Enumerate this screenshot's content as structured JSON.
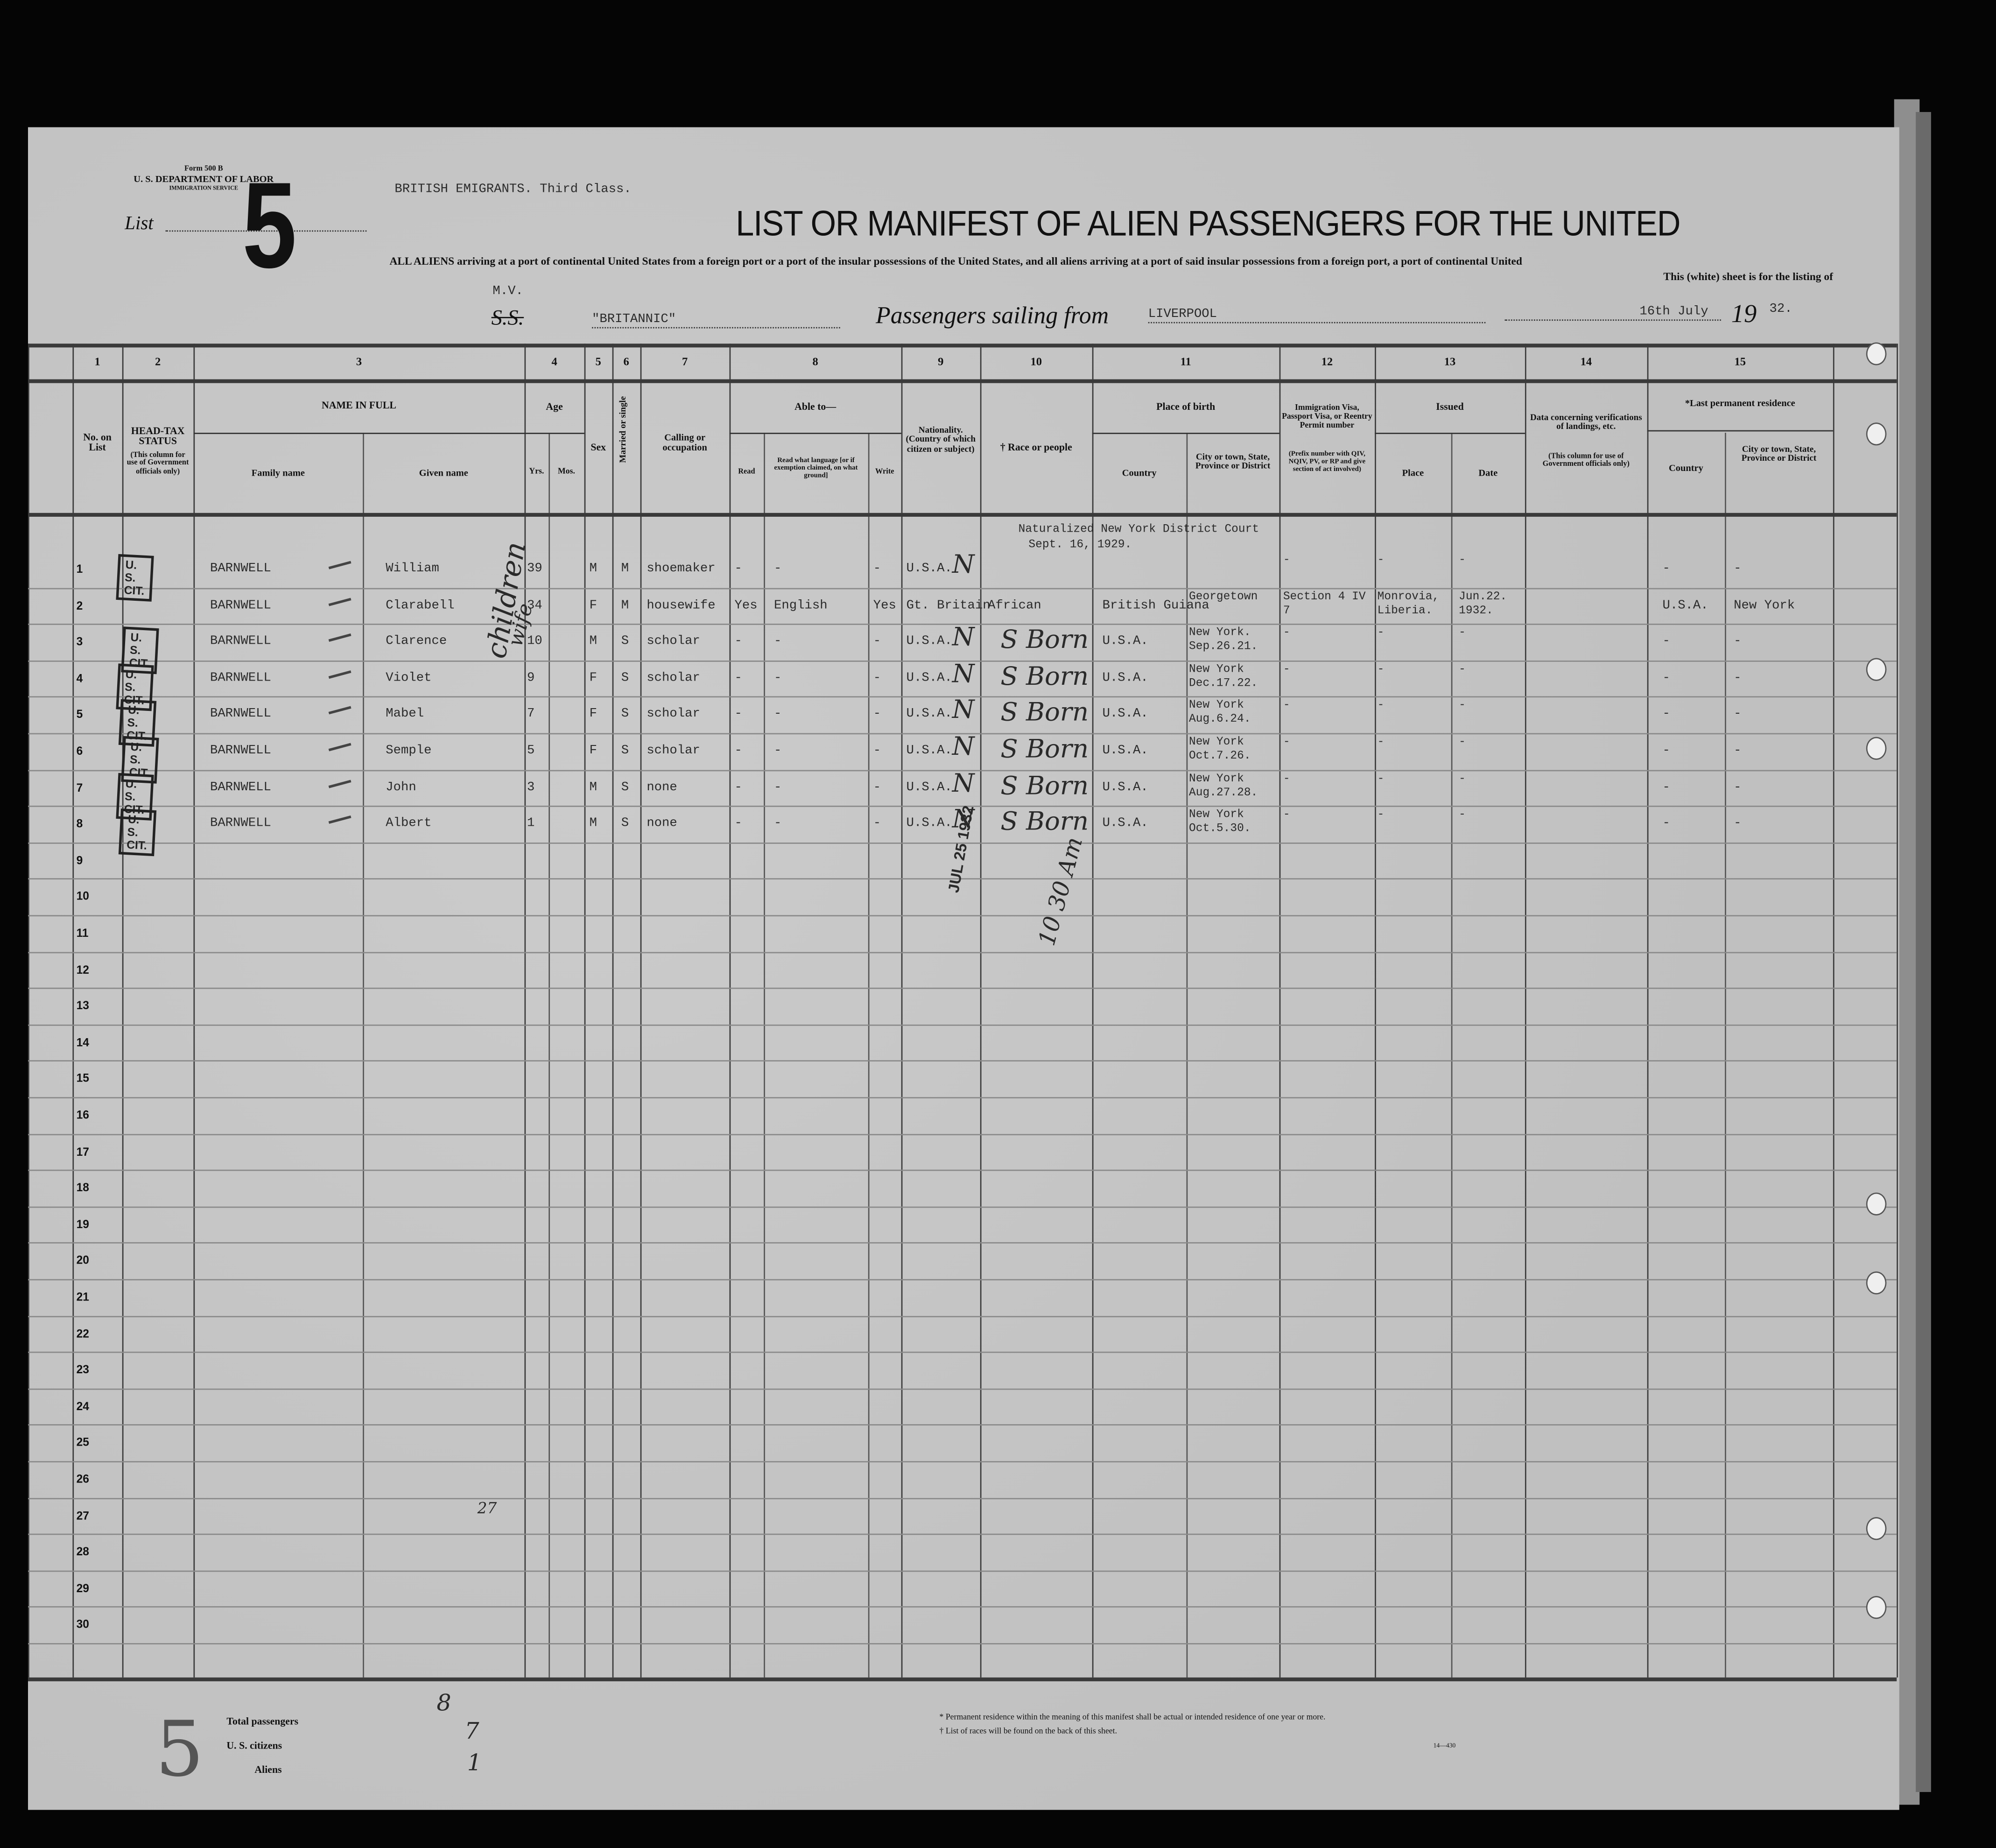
{
  "form": {
    "form_no": "Form 500 B",
    "department": "U. S. DEPARTMENT OF LABOR",
    "service": "IMMIGRATION SERVICE",
    "list_label": "List",
    "list_number": "5",
    "typed_heading": "BRITISH EMIGRANTS.   Third Class.",
    "title": "LIST OR MANIFEST OF ALIEN PASSENGERS FOR THE UNITED",
    "subtitle": "ALL ALIENS arriving at a port of continental United States from a foreign port or a port of the insular possessions of the United States, and all aliens arriving at a port of said insular possessions from a foreign port, a port of continental United",
    "subtitle2": "This (white) sheet is for the listing of",
    "vessel_prefix_typed": "M.V.",
    "vessel_prefix_printed": "S.S.",
    "vessel_name": "\"BRITANNIC\"",
    "sailing_label": "Passengers sailing from",
    "port": "LIVERPOOL",
    "date": "16th July",
    "year_prefix": "19",
    "year_suffix": "32."
  },
  "columns": {
    "numbers": [
      "1",
      "2",
      "3",
      "4",
      "5",
      "6",
      "7",
      "8",
      "9",
      "10",
      "11",
      "12",
      "13",
      "14",
      "15"
    ],
    "no_on_list": "No. on List",
    "head_tax": "HEAD-TAX STATUS",
    "head_tax_note": "(This column for use of Government officials only)",
    "name_in_full": "NAME IN FULL",
    "family_name": "Family name",
    "given_name": "Given name",
    "age": "Age",
    "yrs": "Yrs.",
    "mos": "Mos.",
    "sex": "Sex",
    "married": "Married or single",
    "calling": "Calling or occupation",
    "able_to": "Able to—",
    "read": "Read",
    "read_lang": "Read what language [or if exemption claimed, on what ground]",
    "write": "Write",
    "nationality": "Nationality. (Country of which citizen or subject)",
    "race": "† Race or people",
    "place_of_birth": "Place of birth",
    "birth_country": "Country",
    "birth_city": "City or town, State, Province or District",
    "visa": "Immigration Visa, Passport Visa, or Reentry Permit number",
    "visa_note": "(Prefix number with QIV, NQIV, PV, or RP and give section of act involved)",
    "issued": "Issued",
    "issued_place": "Place",
    "issued_date": "Date",
    "verif": "Data concerning verifications of landings, etc.",
    "verif_note": "(This column for use of Government officials only)",
    "residence": "*Last permanent residence",
    "res_country": "Country",
    "res_city": "City or town, State, Province or District"
  },
  "row_count": 30,
  "passengers": [
    {
      "no": "1",
      "stamp": "U. S. CIT.",
      "family": "BARNWELL",
      "given": "William",
      "yrs": "39",
      "sex": "M",
      "married": "M",
      "occupation": "shoemaker",
      "read": "-",
      "language": "-",
      "write": "-",
      "nationality": "U.S.A.",
      "race": "",
      "birth_country": "",
      "birth_city": "",
      "visa": "-",
      "issued_place": "-",
      "issued_date": "-",
      "res_country": "-",
      "res_city": "-",
      "note": "Naturalized New York District Court",
      "note2": "Sept. 16, 1929."
    },
    {
      "no": "2",
      "stamp": "",
      "family": "BARNWELL",
      "given": "Clarabell",
      "yrs": "34",
      "sex": "F",
      "married": "M",
      "occupation": "housewife",
      "read": "Yes",
      "language": "English",
      "write": "Yes",
      "nationality": "Gt. Britain",
      "race": "African",
      "birth_country": "British Guiana",
      "birth_city": "Georgetown",
      "visa": "Section 4 IV 7",
      "issued_place": "Monrovia, Liberia.",
      "issued_date": "Jun.22. 1932.",
      "res_country": "U.S.A.",
      "res_city": "New York",
      "note": "",
      "note2": ""
    },
    {
      "no": "3",
      "stamp": "U. S. CIT.",
      "family": "BARNWELL",
      "given": "Clarence",
      "yrs": "10",
      "sex": "M",
      "married": "S",
      "occupation": "scholar",
      "read": "-",
      "language": "-",
      "write": "-",
      "nationality": "U.S.A.",
      "race": "",
      "birth_country": "U.S.A.",
      "birth_city": "New York. Sep.26.21.",
      "visa": "-",
      "issued_place": "-",
      "issued_date": "-",
      "res_country": "-",
      "res_city": "-",
      "note": "",
      "note2": ""
    },
    {
      "no": "4",
      "stamp": "U. S. CIT.",
      "family": "BARNWELL",
      "given": "Violet",
      "yrs": "9",
      "sex": "F",
      "married": "S",
      "occupation": "scholar",
      "read": "-",
      "language": "-",
      "write": "-",
      "nationality": "U.S.A.",
      "race": "",
      "birth_country": "U.S.A.",
      "birth_city": "New York Dec.17.22.",
      "visa": "-",
      "issued_place": "-",
      "issued_date": "-",
      "res_country": "-",
      "res_city": "-",
      "note": "",
      "note2": ""
    },
    {
      "no": "5",
      "stamp": "U. S. CIT.",
      "family": "BARNWELL",
      "given": "Mabel",
      "yrs": "7",
      "sex": "F",
      "married": "S",
      "occupation": "scholar",
      "read": "-",
      "language": "-",
      "write": "-",
      "nationality": "U.S.A.",
      "race": "",
      "birth_country": "U.S.A.",
      "birth_city": "New York Aug.6.24.",
      "visa": "-",
      "issued_place": "-",
      "issued_date": "-",
      "res_country": "-",
      "res_city": "-",
      "note": "",
      "note2": ""
    },
    {
      "no": "6",
      "stamp": "U. S. CIT.",
      "family": "BARNWELL",
      "given": "Semple",
      "yrs": "5",
      "sex": "F",
      "married": "S",
      "occupation": "scholar",
      "read": "-",
      "language": "-",
      "write": "-",
      "nationality": "U.S.A.",
      "race": "",
      "birth_country": "U.S.A.",
      "birth_city": "New York Oct.7.26.",
      "visa": "-",
      "issued_place": "-",
      "issued_date": "-",
      "res_country": "-",
      "res_city": "-",
      "note": "",
      "note2": ""
    },
    {
      "no": "7",
      "stamp": "U. S. CIT.",
      "family": "BARNWELL",
      "given": "John",
      "yrs": "3",
      "sex": "M",
      "married": "S",
      "occupation": "none",
      "read": "-",
      "language": "-",
      "write": "-",
      "nationality": "U.S.A.",
      "race": "",
      "birth_country": "U.S.A.",
      "birth_city": "New York Aug.27.28.",
      "visa": "-",
      "issued_place": "-",
      "issued_date": "-",
      "res_country": "-",
      "res_city": "-",
      "note": "",
      "note2": ""
    },
    {
      "no": "8",
      "stamp": "U. S. CIT.",
      "family": "BARNWELL",
      "given": "Albert",
      "yrs": "1",
      "sex": "M",
      "married": "S",
      "occupation": "none",
      "read": "-",
      "language": "-",
      "write": "-",
      "nationality": "U.S.A.",
      "race": "",
      "birth_country": "U.S.A.",
      "birth_city": "New York Oct.5.30.",
      "visa": "-",
      "issued_place": "-",
      "issued_date": "-",
      "res_country": "-",
      "res_city": "-",
      "note": "",
      "note2": ""
    }
  ],
  "handwritten": {
    "race_mark": "S",
    "race_word": "Born",
    "nat_mark": "N",
    "children": "children",
    "wife": "wife",
    "date_stamp": "JUL 25 1932",
    "time": "10 30 Am",
    "row27_mark": "27",
    "margin_number": "5"
  },
  "footer": {
    "total_label": "Total passengers",
    "total_value": "8",
    "citizens_label": "U. S. citizens",
    "citizens_value": "7",
    "aliens_label": "Aliens",
    "aliens_value": "1",
    "note1": "* Permanent residence within the meaning of this manifest shall be actual or intended residence of one year or more.",
    "note2": "† List of races will be found on the back of this sheet.",
    "form_code": "14—430"
  }
}
